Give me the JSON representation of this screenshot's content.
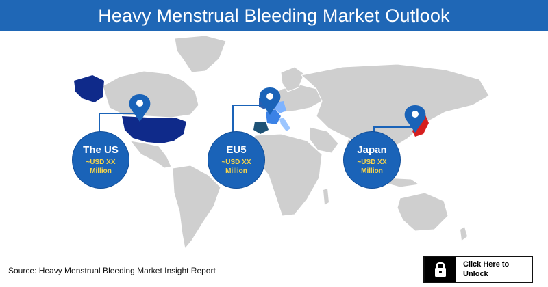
{
  "header": {
    "title": "Heavy Menstrual Bleeding Market Outlook"
  },
  "markers": [
    {
      "name": "The US",
      "value_line1": "~USD XX",
      "value_line2": "Million"
    },
    {
      "name": "EU5",
      "value_line1": "~USD XX",
      "value_line2": "Million"
    },
    {
      "name": "Japan",
      "value_line1": "~USD XX",
      "value_line2": "Million"
    }
  ],
  "footer": {
    "source": "Source: Heavy Menstrual Bleeding Market Insight Report",
    "unlock_line1": "Click Here to",
    "unlock_line2": "Unlock"
  },
  "colors": {
    "header_bg": "#1f67b6",
    "land": "#cfcfcf",
    "us": "#0f2a8a",
    "bubble": "#1a63b8",
    "value_text": "#f7d54a",
    "japan": "#d61f1f"
  },
  "icons": [
    "location-pin-icon",
    "lock-icon"
  ]
}
